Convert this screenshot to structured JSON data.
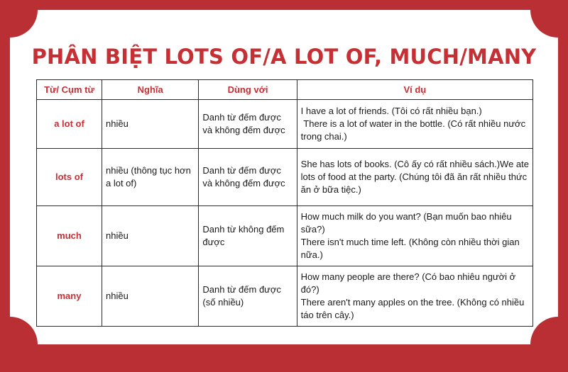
{
  "title": "PHÂN BIỆT LOTS OF/A LOT OF, MUCH/MANY",
  "table": {
    "headers": [
      "Từ/ Cụm từ",
      "Nghĩa",
      "Dùng với",
      "Ví dụ"
    ],
    "rows": [
      {
        "term": "a lot of",
        "meaning": "nhiều",
        "usage": "Danh từ đếm được và không đếm được",
        "examples": [
          "I have a lot of friends. (Tôi có rất nhiều bạn.)",
          " There is a lot of water in the bottle. (Có rất nhiều nước trong chai.)"
        ]
      },
      {
        "term": "lots of",
        "meaning": "nhiều (thông tục hơn a lot of)",
        "usage": "Danh từ đếm được và không đếm được",
        "examples": [
          "She has lots of books. (Cô ấy có rất nhiều sách.)We ate lots of food at the party. (Chúng tôi đã ăn rất nhiều thức ăn ở bữa tiệc.)"
        ]
      },
      {
        "term": "much",
        "meaning": "nhiều",
        "usage": "Danh từ không đếm được",
        "examples": [
          "How much milk do you want? (Bạn muốn bao nhiêu sữa?)",
          "There isn't much time left. (Không còn nhiều thời gian nữa.)"
        ]
      },
      {
        "term": "many",
        "meaning": "nhiều",
        "usage": "Danh từ đếm được (số nhiều)",
        "examples": [
          "How many people are there? (Có bao nhiêu người ở đó?)",
          "There aren't many apples on the tree. (Không có nhiều táo trên cây.)"
        ]
      }
    ]
  },
  "colors": {
    "frame": "#b92f33",
    "accent": "#c62f34",
    "card": "#ffffff"
  }
}
